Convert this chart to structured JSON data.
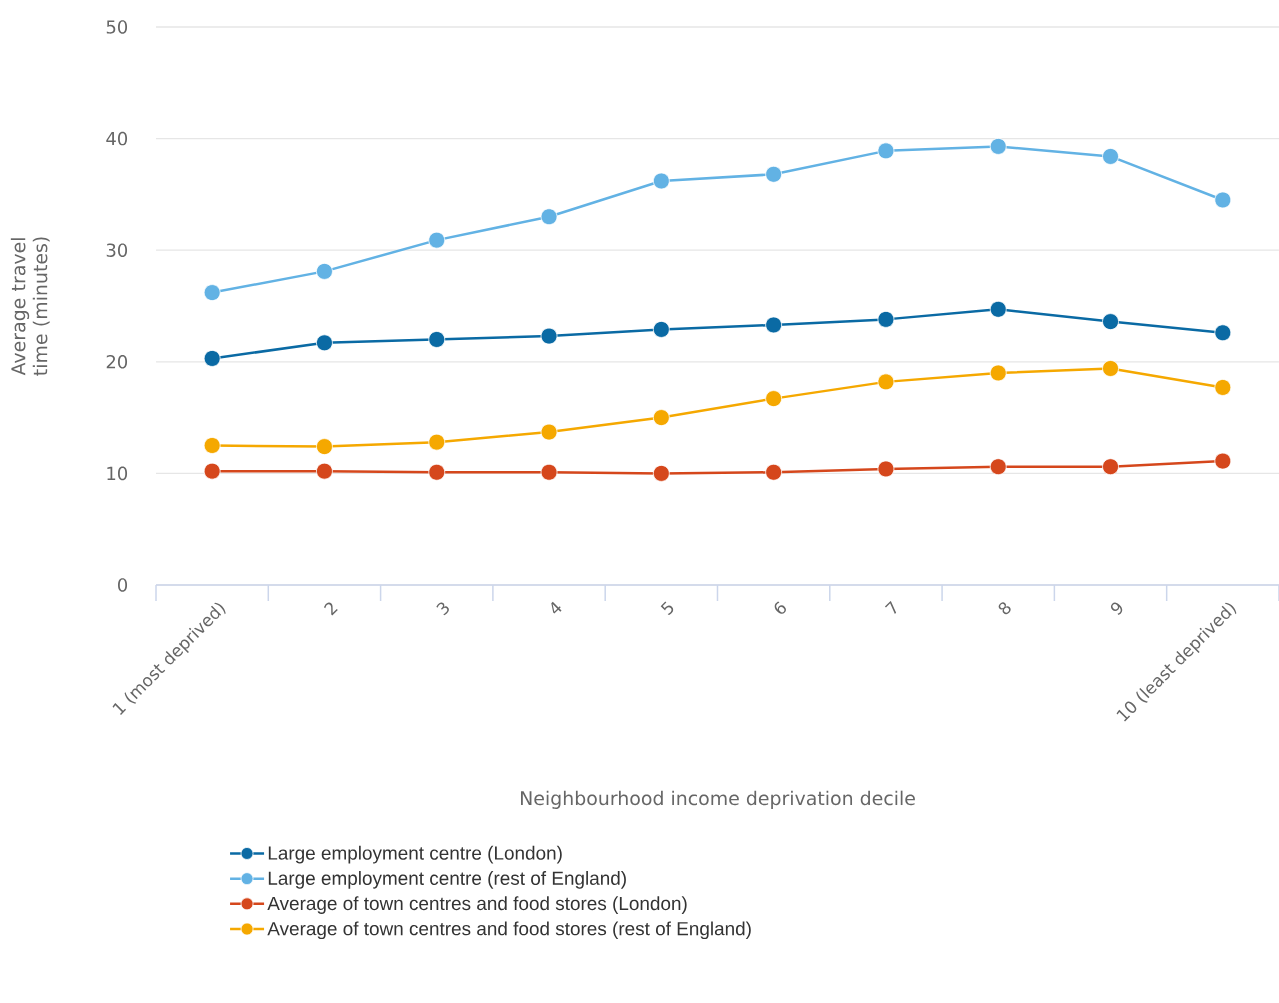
{
  "chart_data": {
    "type": "line",
    "xlabel": "Neighbourhood income deprivation decile",
    "ylabel": "Average travel time (minutes)",
    "categories": [
      "1 (most deprived)",
      "2",
      "3",
      "4",
      "5",
      "6",
      "7",
      "8",
      "9",
      "10 (least deprived)"
    ],
    "series": [
      {
        "name": "Large employment centre (London)",
        "color": "#0a6aa4",
        "values": [
          20.3,
          21.7,
          22.0,
          22.3,
          22.9,
          23.3,
          23.8,
          24.7,
          23.6,
          22.6
        ]
      },
      {
        "name": "Large employment centre (rest of England)",
        "color": "#62b2e4",
        "values": [
          26.2,
          28.1,
          30.9,
          33.0,
          36.2,
          36.8,
          38.9,
          39.3,
          38.4,
          34.5
        ]
      },
      {
        "name": "Average of town centres and food stores (London)",
        "color": "#d5471c",
        "values": [
          10.2,
          10.2,
          10.1,
          10.1,
          10.0,
          10.1,
          10.4,
          10.6,
          10.6,
          11.1
        ]
      },
      {
        "name": "Average of town centres and food stores (rest of England)",
        "color": "#f5a800",
        "values": [
          12.5,
          12.4,
          12.8,
          13.7,
          15.0,
          16.7,
          18.2,
          19.0,
          19.4,
          17.7
        ]
      }
    ],
    "ylim": [
      0,
      50
    ],
    "yticks": [
      0,
      10,
      20,
      30,
      40,
      50
    ],
    "grid": "y",
    "legend": "bottom",
    "marker": "circle",
    "line_style": "solid"
  }
}
